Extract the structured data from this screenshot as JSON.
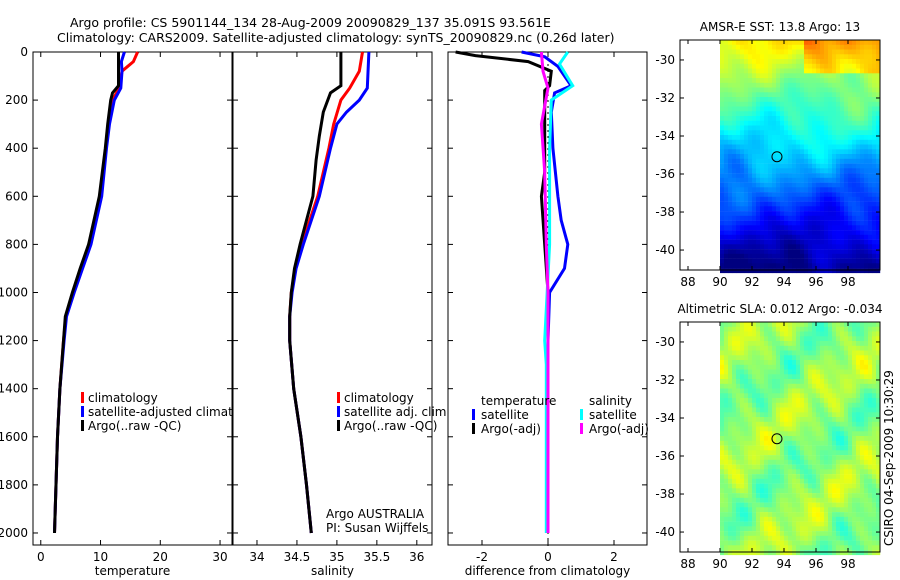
{
  "title": {
    "line1": "Argo profile: CS 5901144_134 28-Aug-2009 20090829_137 35.091S 93.561E",
    "line2": "Climatology: CARS2009. Satellite-adjusted climatology: synTS_20090829.nc (0.26d later)"
  },
  "credit": "CSIRO 04-Sep-2009 10:30:29",
  "agency": {
    "line1": "Argo AUSTRALIA",
    "line2": "PI: Susan Wijffels"
  },
  "colors": {
    "climatology": "#ff0000",
    "satellite": "#0000ff",
    "argo": "#000000",
    "sal_satellite": "#00ffff",
    "sal_argo": "#ff00ff"
  },
  "chart_data": [
    {
      "type": "line",
      "xlabel": "temperature",
      "ylabel": "",
      "xlim": [
        -1.3,
        32
      ],
      "ylim": [
        0,
        2050
      ],
      "xticks": [
        0,
        10,
        20,
        30
      ],
      "yticks": [
        0,
        200,
        400,
        600,
        800,
        1000,
        1200,
        1400,
        1600,
        1800,
        2000
      ],
      "y_reversed": true,
      "legend": [
        "climatology",
        "satellite-adjusted climatolog",
        "Argo(..raw -QC)"
      ],
      "legend_position": "lower-middle",
      "series": [
        {
          "name": "climatology",
          "color": "climatology",
          "depth": [
            0,
            40,
            80,
            150,
            200,
            300,
            400,
            600,
            800,
            900,
            1000,
            1100,
            1200,
            1400,
            1600,
            2000
          ],
          "values": [
            16.2,
            15.5,
            13.6,
            13.1,
            12.0,
            11.3,
            10.9,
            10.0,
            8.2,
            6.8,
            5.5,
            4.2,
            3.8,
            3.2,
            2.8,
            2.3
          ]
        },
        {
          "name": "satellite-adjusted climatology",
          "color": "satellite",
          "depth": [
            0,
            40,
            80,
            150,
            200,
            300,
            400,
            600,
            800,
            900,
            1000,
            1100,
            1200,
            1400,
            1600,
            2000
          ],
          "values": [
            14.0,
            13.5,
            13.6,
            13.4,
            12.3,
            11.5,
            11.0,
            10.2,
            8.4,
            7.0,
            5.6,
            4.3,
            3.9,
            3.2,
            2.8,
            2.3
          ]
        },
        {
          "name": "Argo(..raw -QC)",
          "color": "argo",
          "depth": [
            0,
            140,
            170,
            200,
            300,
            400,
            600,
            800,
            900,
            1000,
            1100,
            1200,
            1400,
            1600,
            2000
          ],
          "values": [
            13.0,
            13.0,
            12.0,
            11.7,
            11.2,
            10.8,
            9.8,
            8.0,
            6.6,
            5.3,
            4.1,
            3.8,
            3.2,
            2.8,
            2.3
          ]
        }
      ]
    },
    {
      "type": "line",
      "xlabel": "salinity",
      "ylabel": "",
      "xlim": [
        33.7,
        36.19
      ],
      "ylim": [
        0,
        2050
      ],
      "xticks": [
        34,
        34.5,
        35,
        35.5,
        36
      ],
      "y_reversed": true,
      "legend": [
        "climatology",
        "satellite adj. clim.",
        "Argo(..raw -QC)"
      ],
      "legend_position": "lower-right",
      "series": [
        {
          "name": "climatology",
          "color": "climatology",
          "depth": [
            0,
            80,
            150,
            200,
            300,
            400,
            600,
            800,
            900,
            1000,
            1100,
            1200,
            1400,
            1600,
            1800,
            2000
          ],
          "values": [
            35.32,
            35.28,
            35.16,
            35.05,
            34.96,
            34.9,
            34.76,
            34.56,
            34.48,
            34.43,
            34.41,
            34.41,
            34.46,
            34.55,
            34.62,
            34.68
          ]
        },
        {
          "name": "satellite adj. clim.",
          "color": "satellite",
          "depth": [
            0,
            150,
            200,
            250,
            300,
            400,
            600,
            800,
            900,
            1000,
            1100,
            1200,
            1400,
            1600,
            1800,
            2000
          ],
          "values": [
            35.4,
            35.38,
            35.28,
            35.12,
            35.0,
            34.92,
            34.78,
            34.58,
            34.49,
            34.44,
            34.41,
            34.41,
            34.46,
            34.55,
            34.62,
            34.68
          ]
        },
        {
          "name": "Argo(..raw -QC)",
          "color": "argo",
          "depth": [
            0,
            140,
            170,
            250,
            350,
            450,
            600,
            800,
            900,
            1000,
            1100,
            1200,
            1400,
            1600,
            1800,
            2000
          ],
          "values": [
            35.05,
            35.05,
            34.92,
            34.83,
            34.78,
            34.74,
            34.7,
            34.54,
            34.47,
            34.43,
            34.41,
            34.41,
            34.46,
            34.55,
            34.62,
            34.68
          ]
        }
      ]
    },
    {
      "type": "line",
      "xlabel": "difference from climatology",
      "ylabel": "",
      "xlim": [
        -3.03,
        3
      ],
      "ylim": [
        0,
        2050
      ],
      "xticks": [
        -2,
        0,
        2
      ],
      "y_reversed": true,
      "legend_groups": [
        {
          "title": "temperature",
          "items": [
            "satellite",
            "Argo(-adj)"
          ]
        },
        {
          "title": "salinity",
          "items": [
            "satellite",
            "Argo(-adj)"
          ]
        }
      ],
      "legend_position": "lower-middle",
      "series": [
        {
          "name": "temperature satellite",
          "color": "satellite",
          "depth": [
            0,
            20,
            60,
            140,
            170,
            250,
            400,
            600,
            700,
            800,
            900,
            1000,
            1200,
            2000
          ],
          "values": [
            -0.8,
            -0.1,
            0.3,
            0.7,
            0.2,
            0.1,
            0.15,
            0.3,
            0.4,
            0.6,
            0.5,
            0.05,
            0.0,
            0.0
          ]
        },
        {
          "name": "temperature Argo(-adj)",
          "color": "argo",
          "depth": [
            0,
            15,
            40,
            80,
            140,
            160,
            250,
            500,
            600,
            1000,
            2000
          ],
          "values": [
            -2.8,
            -2.2,
            -0.6,
            0.1,
            0.05,
            -0.1,
            -0.1,
            -0.1,
            -0.2,
            0.0,
            0.0
          ]
        },
        {
          "name": "salinity satellite",
          "color": "sal_satellite",
          "depth": [
            0,
            50,
            140,
            200,
            400,
            800,
            1200,
            1300,
            2000
          ],
          "values": [
            0.6,
            0.35,
            0.75,
            0.1,
            0.05,
            0.05,
            -0.1,
            -0.05,
            -0.05
          ]
        },
        {
          "name": "salinity Argo(-adj)",
          "color": "sal_argo",
          "depth": [
            0,
            80,
            150,
            300,
            500,
            800,
            1000,
            2000
          ],
          "values": [
            -0.2,
            -0.15,
            0.0,
            -0.2,
            -0.1,
            -0.05,
            0.0,
            0.0
          ]
        }
      ]
    },
    {
      "type": "heatmap",
      "title": "AMSR-E SST: 13.8 Argo: 13",
      "xlim": [
        87.5,
        100
      ],
      "ylim": [
        -41.05,
        -28.95
      ],
      "xticks": [
        88,
        90,
        92,
        94,
        96,
        98
      ],
      "yticks": [
        -30,
        -32,
        -34,
        -36,
        -38,
        -40
      ],
      "data_lon_min": 90,
      "marker": {
        "lon": 93.561,
        "lat": -35.091
      }
    },
    {
      "type": "heatmap",
      "title": "Altimetric SLA: 0.012 Argo: -0.034",
      "xlim": [
        87.5,
        100
      ],
      "ylim": [
        -41.05,
        -28.95
      ],
      "xticks": [
        88,
        90,
        92,
        94,
        96,
        98
      ],
      "yticks": [
        -30,
        -32,
        -34,
        -36,
        -38,
        -40
      ],
      "data_lon_min": 90,
      "marker": {
        "lon": 93.561,
        "lat": -35.091
      }
    }
  ]
}
